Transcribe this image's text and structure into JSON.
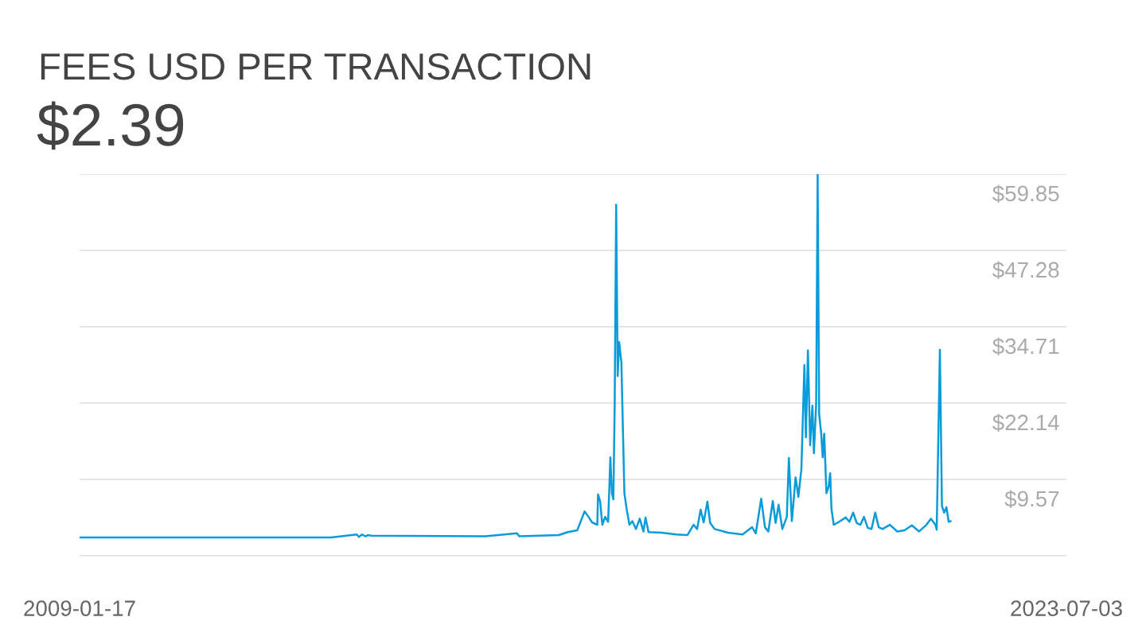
{
  "chart_data": {
    "type": "line",
    "title": "FEES USD PER TRANSACTION",
    "subtitle": "$2.39",
    "x": [
      "2009-01-17",
      "2012-09-23",
      "2013-02-08",
      "2013-02-20",
      "2013-03-08",
      "2013-03-27",
      "2013-04-08",
      "2013-04-28",
      "2014-12-28",
      "2015-06-15",
      "2015-06-27",
      "2016-01-25",
      "2016-03-13",
      "2016-05-03",
      "2016-06-11",
      "2016-07-02",
      "2016-07-21",
      "2016-08-18",
      "2016-08-22",
      "2016-09-02",
      "2016-09-14",
      "2016-09-29",
      "2016-10-15",
      "2016-10-27",
      "2016-11-04",
      "2016-11-12",
      "2016-11-19",
      "2016-11-27",
      "2016-12-05",
      "2016-12-13",
      "2016-12-25",
      "2017-01-03",
      "2017-01-10",
      "2017-01-22",
      "2017-02-06",
      "2017-02-22",
      "2017-03-13",
      "2017-04-02",
      "2017-04-22",
      "2017-05-03",
      "2017-05-19",
      "2017-07-29",
      "2017-10-15",
      "2017-12-13",
      "2018-01-15",
      "2018-02-03",
      "2018-02-22",
      "2018-03-10",
      "2018-03-30",
      "2018-04-14",
      "2018-05-08",
      "2018-07-18",
      "2018-10-04",
      "2018-11-24",
      "2018-12-14",
      "2019-01-12",
      "2019-02-01",
      "2019-02-19",
      "2019-03-15",
      "2019-03-30",
      "2019-04-15",
      "2019-05-05",
      "2019-05-29",
      "2019-06-09",
      "2019-06-25",
      "2019-07-15",
      "2019-07-30",
      "2019-08-15",
      "2019-08-31",
      "2019-09-08",
      "2019-09-19",
      "2019-10-01",
      "2019-10-13",
      "2019-10-21",
      "2019-11-02",
      "2019-11-10",
      "2019-11-18",
      "2019-11-29",
      "2019-12-07",
      "2019-12-15",
      "2019-12-27",
      "2020-01-08",
      "2020-01-16",
      "2020-01-23",
      "2020-02-04",
      "2020-02-28",
      "2020-04-08",
      "2020-04-28",
      "2020-05-18",
      "2020-06-06",
      "2020-06-26",
      "2020-07-15",
      "2020-08-04",
      "2020-08-24",
      "2020-09-13",
      "2020-10-02",
      "2020-10-22",
      "2020-11-30",
      "2021-01-09",
      "2021-02-17",
      "2021-03-28",
      "2021-05-06",
      "2021-06-14",
      "2021-07-08",
      "2021-08-01",
      "2021-08-08",
      "2021-08-25",
      "2021-09-05",
      "2021-09-17",
      "2021-09-29",
      "2021-10-11",
      "2021-10-22"
    ],
    "series": [
      {
        "color": "#0a9bd9",
        "values": [
          0.0,
          0.0,
          0.5,
          0.1,
          0.5,
          0.2,
          0.4,
          0.3,
          0.2,
          0.7,
          0.2,
          0.4,
          0.9,
          1.2,
          4.3,
          3.4,
          2.5,
          2.1,
          7.1,
          6.0,
          2.1,
          3.4,
          2.6,
          13.2,
          7.3,
          6.3,
          21.7,
          54.8,
          26.6,
          32.2,
          28.8,
          16.5,
          7.3,
          4.7,
          2.1,
          2.7,
          1.4,
          3.1,
          1.0,
          3.3,
          0.9,
          0.8,
          0.5,
          0.4,
          2.1,
          1.4,
          4.6,
          2.5,
          5.9,
          2.4,
          1.4,
          0.8,
          0.5,
          1.7,
          0.7,
          6.4,
          1.7,
          1.0,
          6.0,
          2.4,
          5.4,
          1.4,
          3.4,
          13.1,
          2.7,
          9.9,
          6.7,
          11.3,
          28.4,
          16.5,
          30.8,
          15.2,
          21.7,
          13.9,
          22.0,
          59.8,
          20.4,
          17.1,
          13.2,
          17.1,
          7.3,
          8.4,
          10.6,
          4.7,
          2.1,
          2.5,
          3.3,
          2.6,
          4.1,
          2.4,
          2.1,
          3.4,
          1.6,
          1.4,
          4.1,
          1.7,
          1.4,
          2.1,
          1.0,
          1.2,
          2.0,
          1.0,
          2.1,
          3.1,
          2.1,
          1.3,
          30.9,
          5.2,
          4.1,
          5.0,
          2.6,
          2.7
        ]
      }
    ],
    "xlim": [
      "2009-01-17",
      "2023-07-03"
    ],
    "xticks": [
      {
        "value": "2009-01-17",
        "label": "2009-01-17"
      },
      {
        "value": "2023-07-03",
        "label": "2023-07-03"
      }
    ],
    "ylim": [
      -3.0,
      59.85
    ],
    "yticks": [
      {
        "value": -3.0,
        "label": null
      },
      {
        "value": 9.57,
        "label": "$9.57"
      },
      {
        "value": 22.14,
        "label": "$22.14"
      },
      {
        "value": 34.71,
        "label": "$34.71"
      },
      {
        "value": 47.28,
        "label": "$47.28"
      },
      {
        "value": 59.85,
        "label": "$59.85"
      }
    ],
    "grid": "y",
    "marker": "none",
    "line_style": "solid"
  }
}
